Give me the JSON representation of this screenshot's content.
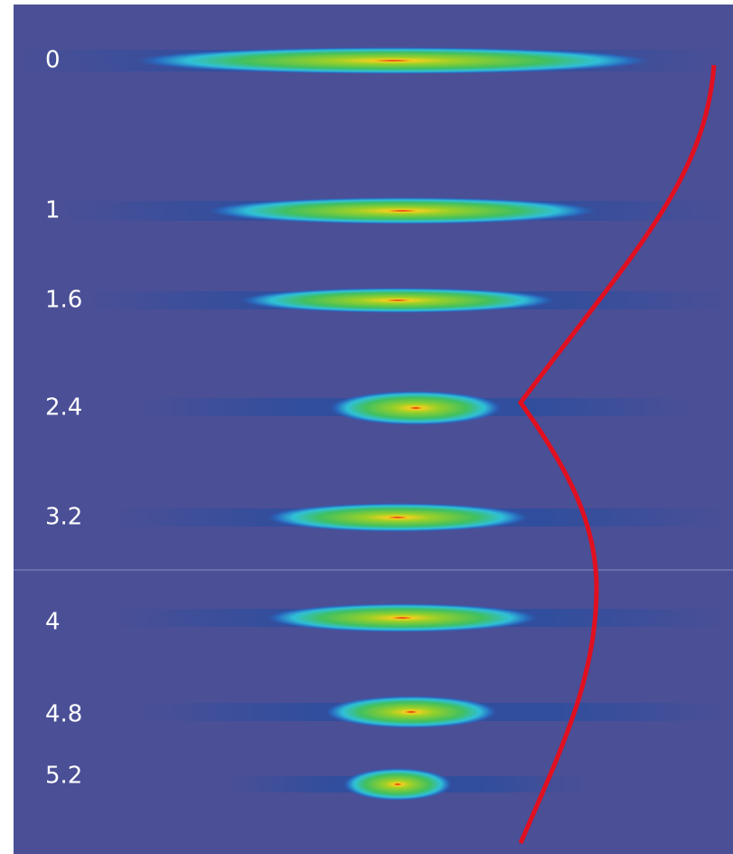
{
  "labels": [
    "0",
    "1",
    "1.6",
    "2.4",
    "3.2",
    "4",
    "4.8",
    "5.2"
  ]
}
